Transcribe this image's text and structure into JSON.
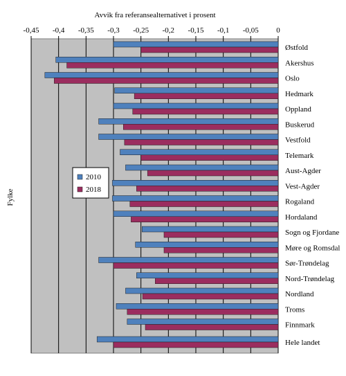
{
  "chart_data": {
    "type": "bar",
    "orientation": "horizontal",
    "xlabel": "Avvik fra referansealternativet i prosent",
    "ylabel": "Fylke",
    "xlim": [
      -0.45,
      0
    ],
    "xticks": [
      "-0,45",
      "-0,4",
      "-0,35",
      "-0,3",
      "-0,25",
      "-0,2",
      "-0,15",
      "-0,1",
      "-0,05",
      "0"
    ],
    "xtick_values": [
      -0.45,
      -0.4,
      -0.35,
      -0.3,
      -0.25,
      -0.2,
      -0.15,
      -0.1,
      -0.05,
      0
    ],
    "grid": "vertical",
    "legend_position": "left-center",
    "categories": [
      "Østfold",
      "Akershus",
      "Oslo",
      "Hedmark",
      "Oppland",
      "Buskerud",
      "Vestfold",
      "Telemark",
      "Aust-Agder",
      "Vest-Agder",
      "Rogaland",
      "Hordaland",
      "Sogn og Fjordane",
      "Møre og Romsdal",
      "Sør-Trøndelag",
      "Nord-Trøndelag",
      "Nordland",
      "Troms",
      "Finnmark",
      "Hele landet"
    ],
    "series": [
      {
        "name": "2010",
        "color": "#4f81bd",
        "values": [
          -0.3,
          -0.405,
          -0.425,
          -0.298,
          -0.3,
          -0.327,
          -0.327,
          -0.288,
          -0.278,
          -0.302,
          -0.302,
          -0.3,
          -0.248,
          -0.26,
          -0.327,
          -0.258,
          -0.278,
          -0.295,
          -0.275,
          -0.33
        ]
      },
      {
        "name": "2018",
        "color": "#9b2d5f",
        "values": [
          -0.25,
          -0.385,
          -0.408,
          -0.262,
          -0.265,
          -0.282,
          -0.28,
          -0.25,
          -0.238,
          -0.258,
          -0.27,
          -0.268,
          -0.208,
          -0.208,
          -0.3,
          -0.224,
          -0.247,
          -0.275,
          -0.242,
          -0.3
        ]
      }
    ]
  }
}
